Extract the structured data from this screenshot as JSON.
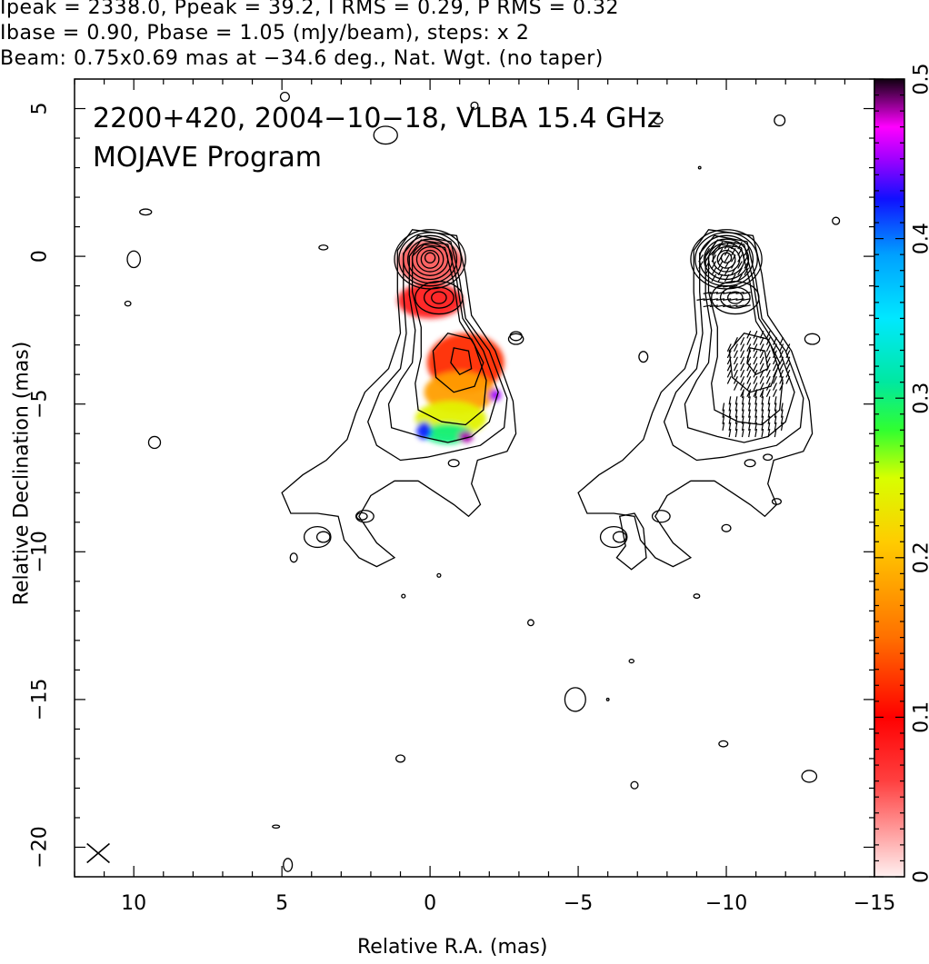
{
  "header": {
    "line1": "Ipeak = 2338.0, Ppeak = 39.2, I RMS = 0.29, P RMS = 0.32",
    "line2": "Ibase = 0.90, Pbase = 1.05 (mJy/beam), steps: x 2",
    "line3": "Beam: 0.75x0.69 mas at −34.6 deg., Nat. Wgt. (no taper)"
  },
  "chart_data": {
    "type": "heatmap",
    "title_line1": "2200+420, 2004−10−18, VLBA 15.4 GHz",
    "title_line2": "MOJAVE Program",
    "xlabel": "Relative R.A. (mas)",
    "ylabel": "Relative Declination (mas)",
    "xlim": [
      12,
      -15
    ],
    "ylim": [
      -21,
      6
    ],
    "x_ticks": [
      10,
      5,
      0,
      -5,
      -10,
      -15
    ],
    "x_tick_labels": [
      "10",
      "5",
      "0",
      "−5",
      "−10",
      "−15"
    ],
    "y_ticks": [
      5,
      0,
      -5,
      -10,
      -15,
      -20
    ],
    "y_tick_labels": [
      "5",
      "0",
      "−5",
      "−10",
      "−15",
      "−20"
    ],
    "colorbar": {
      "range": [
        0,
        0.5
      ],
      "ticks": [
        0,
        0.1,
        0.2,
        0.3,
        0.4,
        0.5
      ],
      "tick_labels": [
        "0",
        "0.1",
        "0.2",
        "0.3",
        "0.4",
        "0.5"
      ]
    },
    "core_contour_levels_x_ratio": 2,
    "panels": [
      {
        "name": "left",
        "offset_x": 0,
        "content": "total intensity contours with fractional polarization color"
      },
      {
        "name": "right",
        "offset_x": -10,
        "content": "total intensity contours with EVPA sticks"
      }
    ],
    "polarization_blobs": [
      {
        "x": 0.0,
        "y": -0.2,
        "rx": 1.1,
        "ry": 0.75,
        "value": 0.05
      },
      {
        "x": 0.0,
        "y": -1.5,
        "rx": 1.1,
        "ry": 0.6,
        "value": 0.08
      },
      {
        "x": -1.2,
        "y": -3.6,
        "rx": 1.3,
        "ry": 1.0,
        "value": 0.12
      },
      {
        "x": -1.0,
        "y": -4.6,
        "rx": 1.2,
        "ry": 0.7,
        "value": 0.18
      },
      {
        "x": -0.7,
        "y": -5.5,
        "rx": 1.2,
        "ry": 0.6,
        "value": 0.24
      },
      {
        "x": -0.6,
        "y": -6.0,
        "rx": 0.8,
        "ry": 0.35,
        "value": 0.3
      },
      {
        "x": 0.2,
        "y": -5.9,
        "rx": 0.25,
        "ry": 0.3,
        "value": 0.42
      },
      {
        "x": -1.2,
        "y": -6.1,
        "rx": 0.25,
        "ry": 0.2,
        "value": 0.48
      },
      {
        "x": -2.2,
        "y": -4.7,
        "rx": 0.2,
        "ry": 0.2,
        "value": 0.45
      }
    ],
    "beam_marker": {
      "x": 11.2,
      "y": -20.2
    }
  }
}
